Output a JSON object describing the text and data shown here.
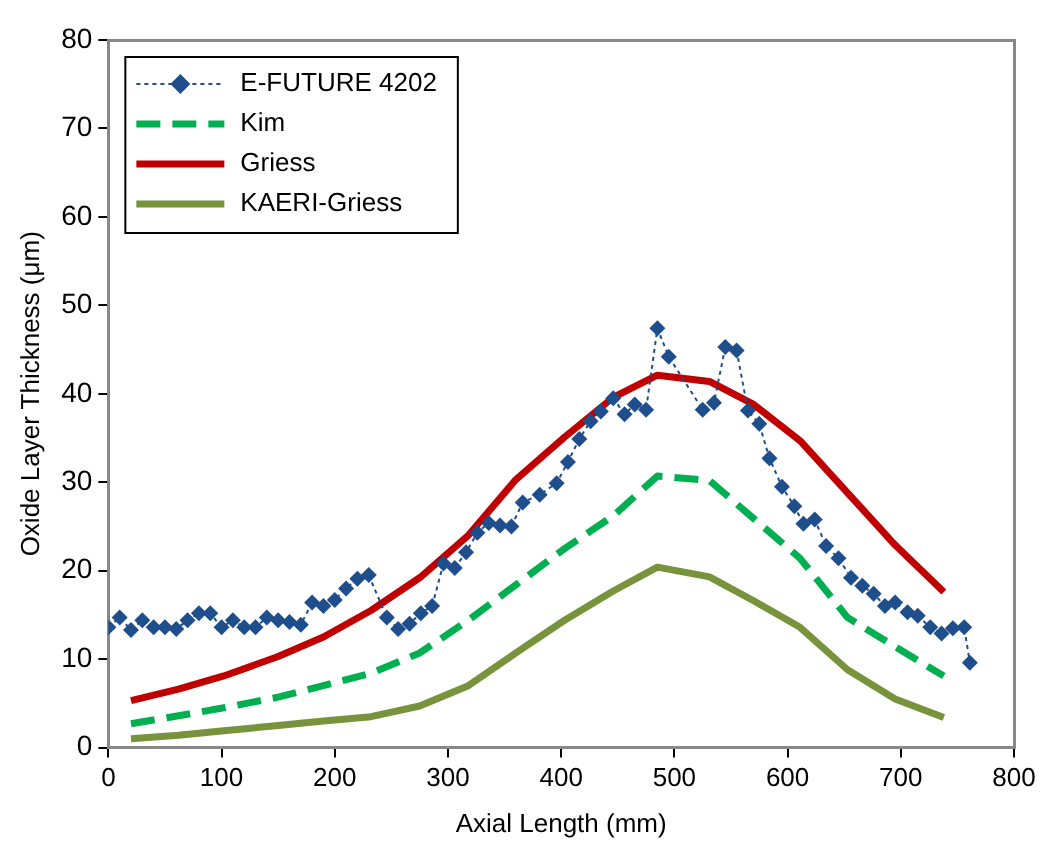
{
  "chart_data": {
    "type": "line",
    "xlabel": "Axial Length (mm)",
    "ylabel": "Oxide Layer Thickness (μm)",
    "xlim": [
      0,
      800
    ],
    "xticks": [
      0,
      100,
      200,
      300,
      400,
      500,
      600,
      700,
      800
    ],
    "ylim": [
      0,
      80
    ],
    "yticks": [
      0,
      10,
      20,
      30,
      40,
      50,
      60,
      70,
      80
    ],
    "grid": false,
    "legend": "top left",
    "series": [
      {
        "name": "E-FUTURE 4202",
        "color": "#1f4e8c",
        "marker": "diamond",
        "line_style": "dotted",
        "x": [
          0,
          10,
          20,
          30,
          40,
          50,
          60,
          70,
          80,
          90,
          100,
          110,
          120,
          130,
          140,
          150,
          160,
          170,
          180,
          190,
          200,
          210,
          220,
          230,
          246,
          256,
          266,
          276,
          286,
          296,
          306,
          316,
          326,
          336,
          346,
          356,
          366,
          381,
          396,
          406,
          416,
          426,
          435,
          446,
          456,
          465,
          475,
          485,
          495,
          525,
          535,
          545,
          555,
          565,
          575,
          584,
          595,
          606,
          614,
          624,
          634,
          645,
          656,
          666,
          676,
          686,
          695,
          706,
          715,
          726,
          736,
          746,
          756,
          761
        ],
        "values": [
          13.6,
          14.7,
          13.3,
          14.4,
          13.6,
          13.6,
          13.4,
          14.4,
          15.2,
          15.2,
          13.6,
          14.4,
          13.6,
          13.6,
          14.7,
          14.4,
          14.2,
          13.9,
          16.4,
          16.0,
          16.7,
          18.0,
          19.1,
          19.5,
          14.7,
          13.4,
          14.0,
          15.2,
          16.0,
          20.8,
          20.3,
          22.1,
          24.3,
          25.4,
          25.1,
          25.0,
          27.7,
          28.6,
          29.9,
          32.3,
          34.9,
          36.9,
          38.0,
          39.5,
          37.7,
          38.8,
          38.2,
          47.4,
          44.2,
          38.2,
          39.0,
          45.3,
          44.9,
          38.1,
          36.6,
          32.7,
          29.5,
          27.3,
          25.3,
          25.8,
          22.8,
          21.4,
          19.2,
          18.3,
          17.4,
          16.0,
          16.4,
          15.3,
          14.9,
          13.6,
          12.9,
          13.5,
          13.6,
          9.6
        ]
      },
      {
        "name": "Kim",
        "color": "#00b050",
        "marker": "none",
        "line_style": "dashed",
        "x": [
          20,
          62,
          102,
          150,
          190,
          232,
          275,
          318,
          360,
          403,
          446,
          485,
          531,
          570,
          611,
          653,
          695,
          738
        ],
        "values": [
          2.7,
          3.6,
          4.5,
          5.7,
          7.0,
          8.4,
          10.7,
          14.4,
          18.4,
          22.5,
          26.2,
          30.7,
          30.2,
          25.9,
          21.4,
          14.7,
          11.4,
          8.1
        ]
      },
      {
        "name": "Griess",
        "color": "#c00000",
        "marker": "none",
        "line_style": "solid",
        "x": [
          20,
          62,
          102,
          150,
          190,
          232,
          275,
          318,
          360,
          403,
          446,
          485,
          531,
          570,
          611,
          653,
          695,
          738
        ],
        "values": [
          5.3,
          6.6,
          8.1,
          10.3,
          12.5,
          15.5,
          19.2,
          24.0,
          30.3,
          35.1,
          39.6,
          42.1,
          41.4,
          38.8,
          34.7,
          28.8,
          22.9,
          17.6
        ]
      },
      {
        "name": "KAERI-Griess",
        "color": "#77933c",
        "marker": "none",
        "line_style": "solid",
        "x": [
          20,
          62,
          102,
          150,
          190,
          232,
          275,
          318,
          360,
          403,
          446,
          485,
          531,
          570,
          611,
          653,
          695,
          738
        ],
        "values": [
          1.0,
          1.4,
          1.9,
          2.5,
          3.0,
          3.5,
          4.7,
          7.0,
          10.7,
          14.4,
          17.7,
          20.4,
          19.3,
          16.6,
          13.6,
          8.8,
          5.5,
          3.4
        ]
      }
    ]
  }
}
